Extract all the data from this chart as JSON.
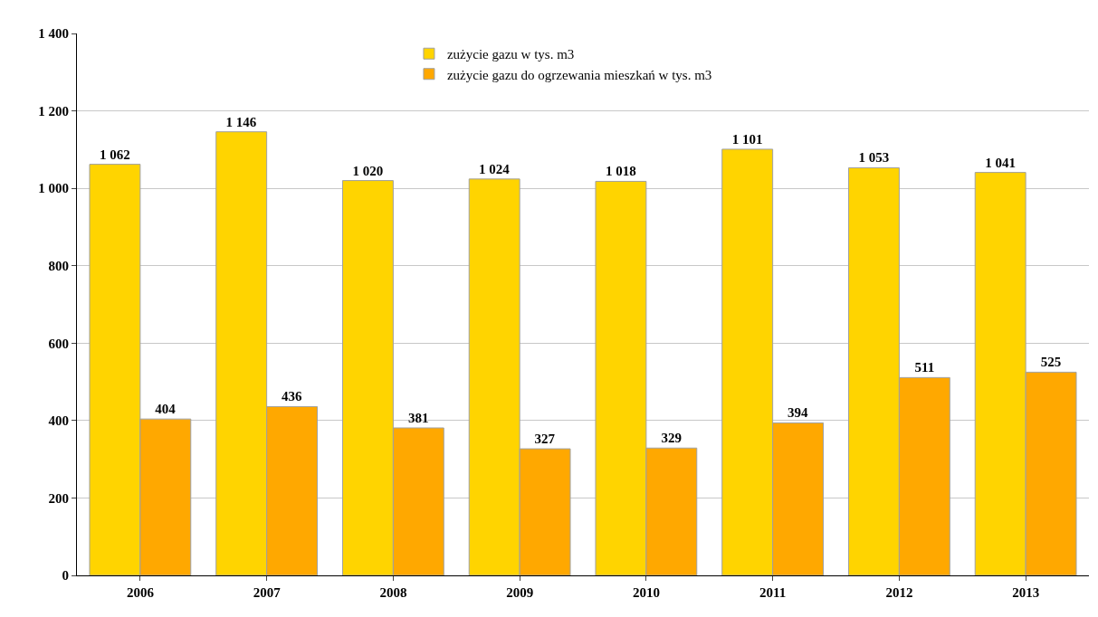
{
  "chart_data": {
    "type": "bar",
    "categories": [
      "2006",
      "2007",
      "2008",
      "2009",
      "2010",
      "2011",
      "2012",
      "2013"
    ],
    "series": [
      {
        "name": "zużycie gazu w tys. m3",
        "color": "#ffd400",
        "values": [
          1062,
          1146,
          1020,
          1024,
          1018,
          1101,
          1053,
          1041
        ],
        "value_labels": [
          "1 062",
          "1 146",
          "1 020",
          "1 024",
          "1 018",
          "1 101",
          "1 053",
          "1 041"
        ]
      },
      {
        "name": "zużycie gazu do ogrzewania mieszkań w tys. m3",
        "color": "#ffa800",
        "values": [
          404,
          436,
          381,
          327,
          329,
          394,
          511,
          525
        ],
        "value_labels": [
          "404",
          "436",
          "381",
          "327",
          "329",
          "394",
          "511",
          "525"
        ]
      }
    ],
    "ylim": [
      0,
      1400
    ],
    "yticks": [
      0,
      200,
      400,
      600,
      800,
      {
        "value": 1000,
        "label": "1 000"
      },
      {
        "value": 1200,
        "label": "1 200"
      },
      {
        "value": 1400,
        "label": "1 400"
      }
    ],
    "grid": "y",
    "legend": "top"
  }
}
